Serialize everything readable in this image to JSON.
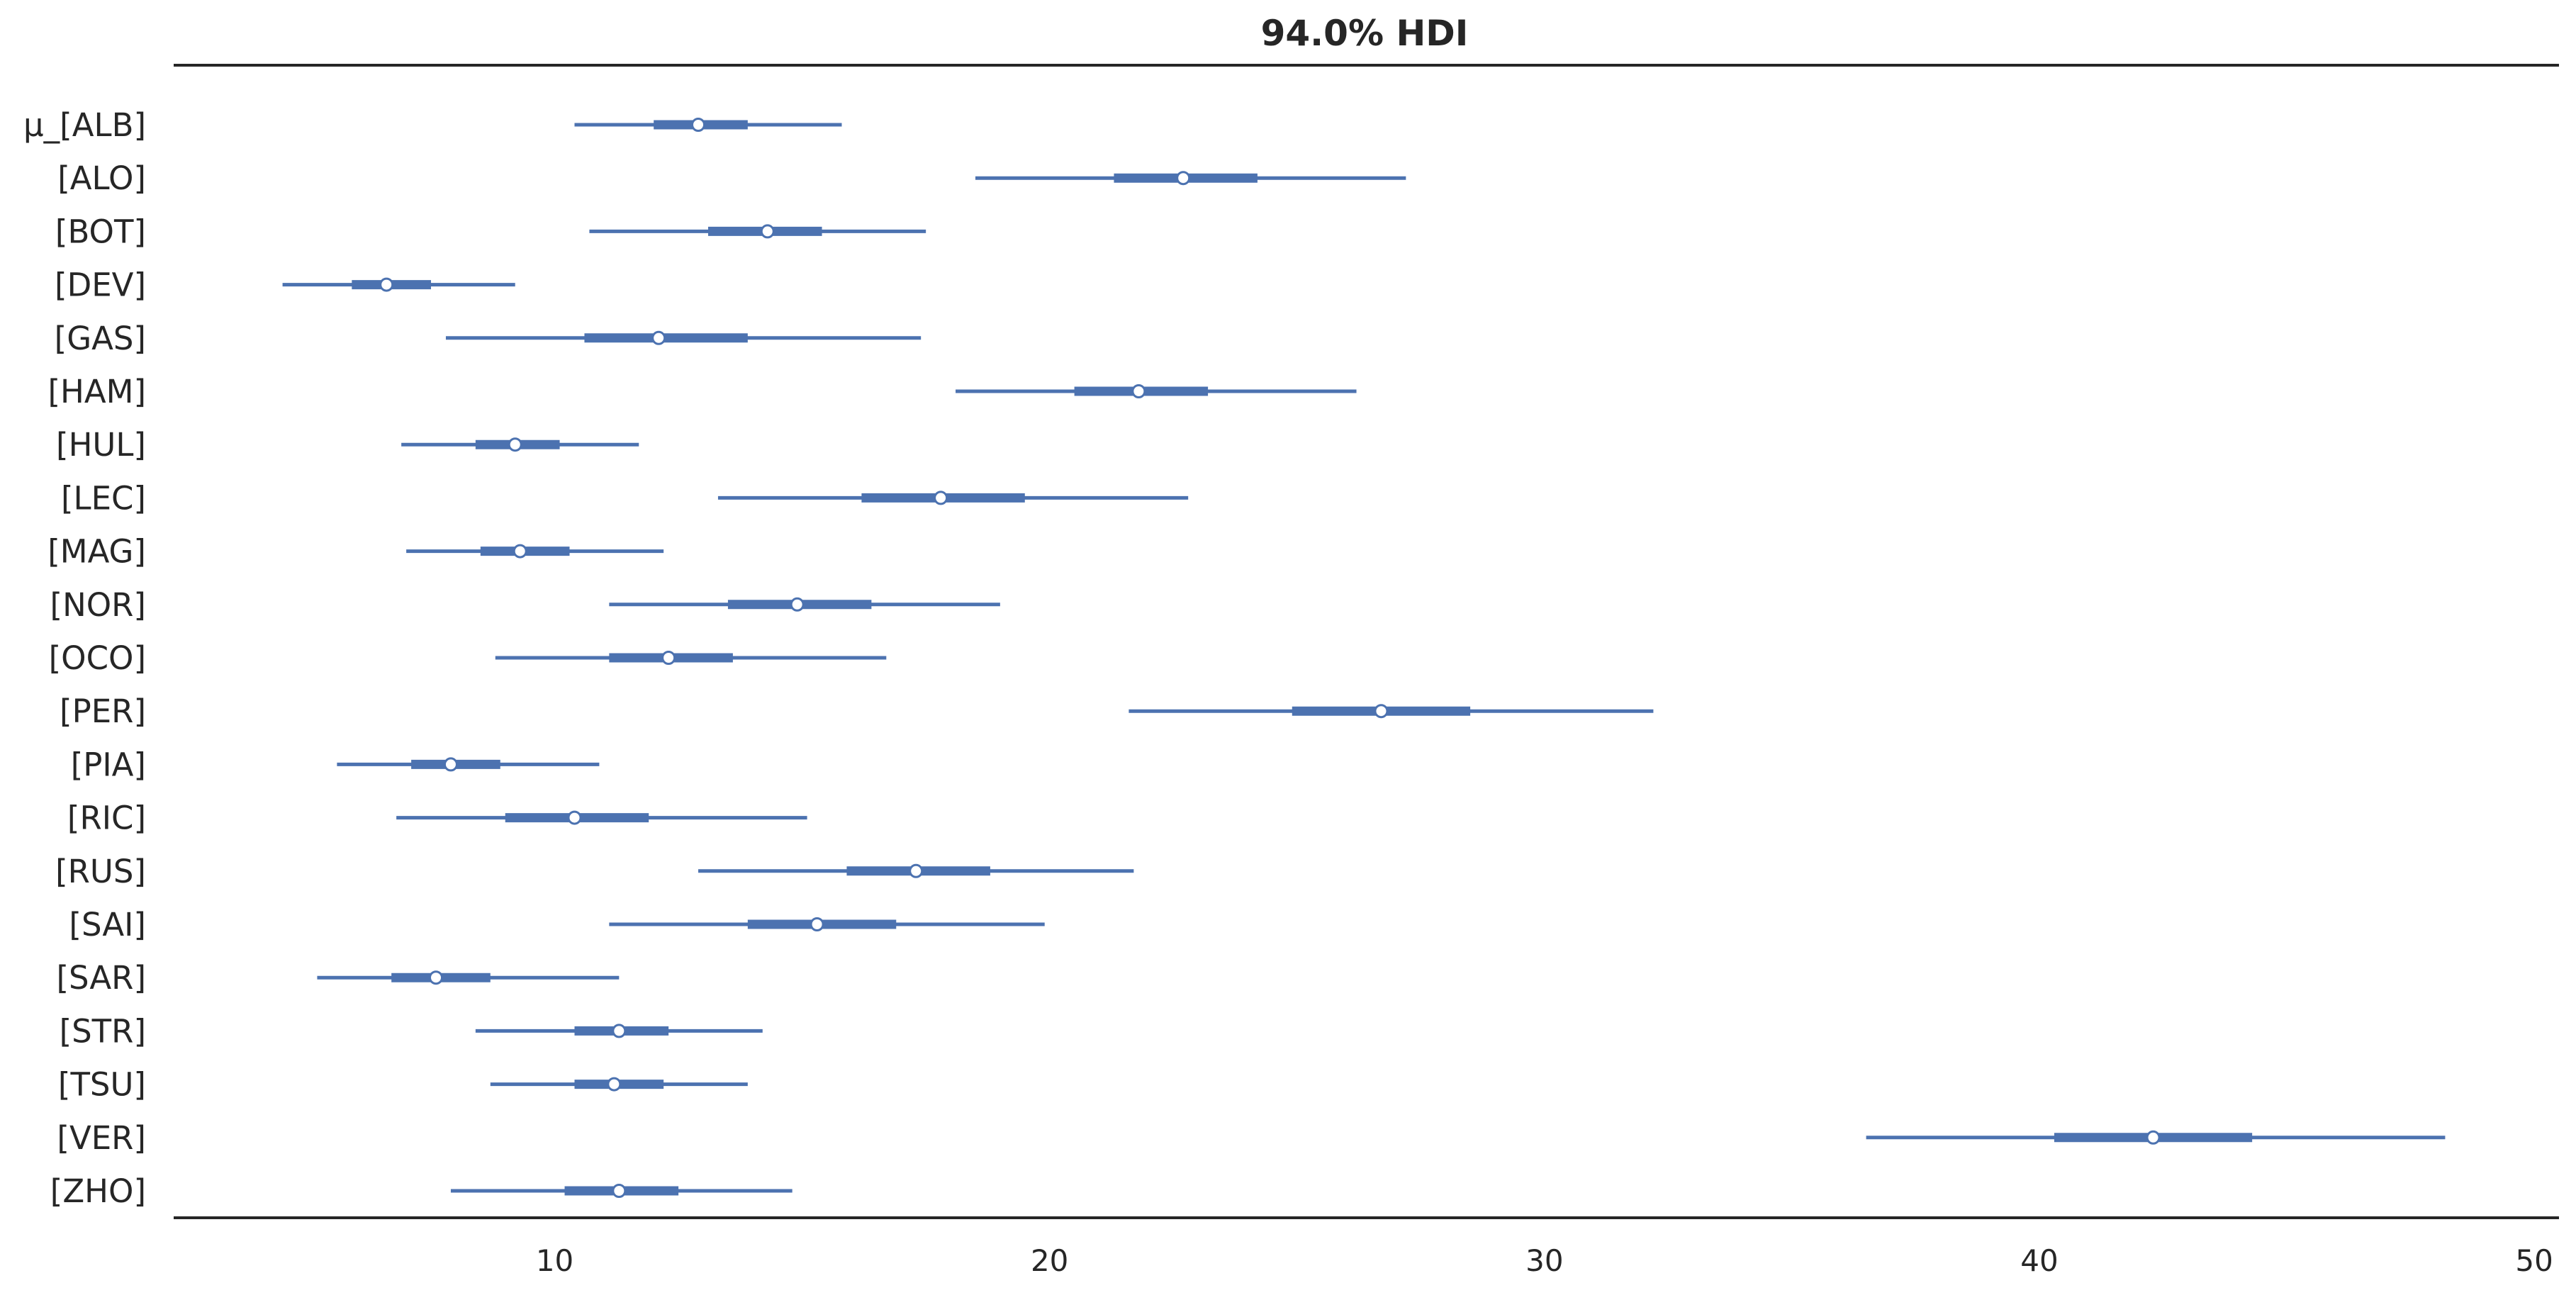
{
  "chart_data": {
    "type": "forest",
    "title": "94.0% HDI",
    "xlim": [
      2.3,
      50.5
    ],
    "xticks": [
      10,
      20,
      30,
      40,
      50
    ],
    "grid": false,
    "color": "#4c72b0",
    "marker_fill": "#ffffff",
    "rows": [
      {
        "label": "μ_[ALB]",
        "hdi_low": 10.4,
        "iqr_low": 12.0,
        "median": 12.9,
        "iqr_high": 13.9,
        "hdi_high": 15.8
      },
      {
        "label": "[ALO]",
        "hdi_low": 18.5,
        "iqr_low": 21.3,
        "median": 22.7,
        "iqr_high": 24.2,
        "hdi_high": 27.2
      },
      {
        "label": "[BOT]",
        "hdi_low": 10.7,
        "iqr_low": 13.1,
        "median": 14.3,
        "iqr_high": 15.4,
        "hdi_high": 17.5
      },
      {
        "label": "[DEV]",
        "hdi_low": 4.5,
        "iqr_low": 5.9,
        "median": 6.6,
        "iqr_high": 7.5,
        "hdi_high": 9.2
      },
      {
        "label": "[GAS]",
        "hdi_low": 7.8,
        "iqr_low": 10.6,
        "median": 12.1,
        "iqr_high": 13.9,
        "hdi_high": 17.4
      },
      {
        "label": "[HAM]",
        "hdi_low": 18.1,
        "iqr_low": 20.5,
        "median": 21.8,
        "iqr_high": 23.2,
        "hdi_high": 26.2
      },
      {
        "label": "[HUL]",
        "hdi_low": 6.9,
        "iqr_low": 8.4,
        "median": 9.2,
        "iqr_high": 10.1,
        "hdi_high": 11.7
      },
      {
        "label": "[LEC]",
        "hdi_low": 13.3,
        "iqr_low": 16.2,
        "median": 17.8,
        "iqr_high": 19.5,
        "hdi_high": 22.8
      },
      {
        "label": "[MAG]",
        "hdi_low": 7.0,
        "iqr_low": 8.5,
        "median": 9.3,
        "iqr_high": 10.3,
        "hdi_high": 12.2
      },
      {
        "label": "[NOR]",
        "hdi_low": 11.1,
        "iqr_low": 13.5,
        "median": 14.9,
        "iqr_high": 16.4,
        "hdi_high": 19.0
      },
      {
        "label": "[OCO]",
        "hdi_low": 8.8,
        "iqr_low": 11.1,
        "median": 12.3,
        "iqr_high": 13.6,
        "hdi_high": 16.7
      },
      {
        "label": "[PER]",
        "hdi_low": 21.6,
        "iqr_low": 24.9,
        "median": 26.7,
        "iqr_high": 28.5,
        "hdi_high": 32.2
      },
      {
        "label": "[PIA]",
        "hdi_low": 5.6,
        "iqr_low": 7.1,
        "median": 7.9,
        "iqr_high": 8.9,
        "hdi_high": 10.9
      },
      {
        "label": "[RIC]",
        "hdi_low": 6.8,
        "iqr_low": 9.0,
        "median": 10.4,
        "iqr_high": 11.9,
        "hdi_high": 15.1
      },
      {
        "label": "[RUS]",
        "hdi_low": 12.9,
        "iqr_low": 15.9,
        "median": 17.3,
        "iqr_high": 18.8,
        "hdi_high": 21.7
      },
      {
        "label": "[SAI]",
        "hdi_low": 11.1,
        "iqr_low": 13.9,
        "median": 15.3,
        "iqr_high": 16.9,
        "hdi_high": 19.9
      },
      {
        "label": "[SAR]",
        "hdi_low": 5.2,
        "iqr_low": 6.7,
        "median": 7.6,
        "iqr_high": 8.7,
        "hdi_high": 11.3
      },
      {
        "label": "[STR]",
        "hdi_low": 8.4,
        "iqr_low": 10.4,
        "median": 11.3,
        "iqr_high": 12.3,
        "hdi_high": 14.2
      },
      {
        "label": "[TSU]",
        "hdi_low": 8.7,
        "iqr_low": 10.4,
        "median": 11.2,
        "iqr_high": 12.2,
        "hdi_high": 13.9
      },
      {
        "label": "[VER]",
        "hdi_low": 36.5,
        "iqr_low": 40.3,
        "median": 42.3,
        "iqr_high": 44.3,
        "hdi_high": 48.2
      },
      {
        "label": "[ZHO]",
        "hdi_low": 7.9,
        "iqr_low": 10.2,
        "median": 11.3,
        "iqr_high": 12.5,
        "hdi_high": 14.8
      }
    ]
  }
}
